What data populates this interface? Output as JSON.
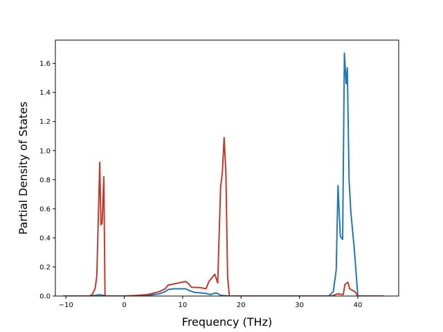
{
  "chart_data": {
    "type": "line",
    "xlabel": "Frequency (THz)",
    "ylabel": "Partial Density of States",
    "xlim": [
      -11.8,
      47.0
    ],
    "ylim": [
      0.0,
      1.76
    ],
    "grid": false,
    "x_ticks": [
      -10,
      0,
      10,
      20,
      30,
      40
    ],
    "y_ticks": [
      0.0,
      0.2,
      0.4,
      0.6,
      0.8,
      1.0,
      1.2,
      1.4,
      1.6
    ],
    "series": [
      {
        "color": "#1f77b4",
        "points": [
          [
            -10.5,
            0.0
          ],
          [
            -6.0,
            0.0
          ],
          [
            -5.0,
            0.004
          ],
          [
            -4.6,
            0.008
          ],
          [
            -4.2,
            0.009
          ],
          [
            -3.8,
            0.006
          ],
          [
            -3.2,
            0.003
          ],
          [
            -3.0,
            0.0
          ],
          [
            0.0,
            0.0
          ],
          [
            2.0,
            0.001
          ],
          [
            4.0,
            0.004
          ],
          [
            6.0,
            0.015
          ],
          [
            7.0,
            0.03
          ],
          [
            7.5,
            0.045
          ],
          [
            8.5,
            0.05
          ],
          [
            10.5,
            0.05
          ],
          [
            11.0,
            0.04
          ],
          [
            12.0,
            0.025
          ],
          [
            13.0,
            0.022
          ],
          [
            14.0,
            0.018
          ],
          [
            14.8,
            0.01
          ],
          [
            15.5,
            0.02
          ],
          [
            16.0,
            0.018
          ],
          [
            16.5,
            0.005
          ],
          [
            17.5,
            0.002
          ],
          [
            18.0,
            0.0
          ],
          [
            35.0,
            0.0
          ],
          [
            35.8,
            0.03
          ],
          [
            36.3,
            0.18
          ],
          [
            36.6,
            0.76
          ],
          [
            37.0,
            0.41
          ],
          [
            37.4,
            0.39
          ],
          [
            37.7,
            1.67
          ],
          [
            38.0,
            1.46
          ],
          [
            38.2,
            1.57
          ],
          [
            38.5,
            0.8
          ],
          [
            38.8,
            0.58
          ],
          [
            39.4,
            0.32
          ],
          [
            40.0,
            0.0
          ],
          [
            44.5,
            0.0
          ]
        ]
      },
      {
        "color": "#c0392b",
        "points": [
          [
            -10.5,
            0.0
          ],
          [
            -6.0,
            0.0
          ],
          [
            -5.5,
            0.01
          ],
          [
            -5.0,
            0.05
          ],
          [
            -4.7,
            0.14
          ],
          [
            -4.5,
            0.45
          ],
          [
            -4.2,
            0.92
          ],
          [
            -4.0,
            0.49
          ],
          [
            -3.8,
            0.5
          ],
          [
            -3.5,
            0.82
          ],
          [
            -3.3,
            0.0
          ],
          [
            0.0,
            0.0
          ],
          [
            2.0,
            0.004
          ],
          [
            4.0,
            0.01
          ],
          [
            6.0,
            0.03
          ],
          [
            7.0,
            0.05
          ],
          [
            7.5,
            0.075
          ],
          [
            10.5,
            0.1
          ],
          [
            11.0,
            0.085
          ],
          [
            11.5,
            0.06
          ],
          [
            13.0,
            0.058
          ],
          [
            14.0,
            0.05
          ],
          [
            14.5,
            0.1
          ],
          [
            15.5,
            0.15
          ],
          [
            16.0,
            0.09
          ],
          [
            16.5,
            0.75
          ],
          [
            16.8,
            0.85
          ],
          [
            17.1,
            1.09
          ],
          [
            17.4,
            0.85
          ],
          [
            17.7,
            0.13
          ],
          [
            18.0,
            0.0
          ],
          [
            35.5,
            0.0
          ],
          [
            36.5,
            0.015
          ],
          [
            37.5,
            0.01
          ],
          [
            37.8,
            0.08
          ],
          [
            38.3,
            0.095
          ],
          [
            38.6,
            0.05
          ],
          [
            39.5,
            0.03
          ],
          [
            40.0,
            0.0
          ],
          [
            44.5,
            0.0
          ]
        ]
      }
    ]
  }
}
